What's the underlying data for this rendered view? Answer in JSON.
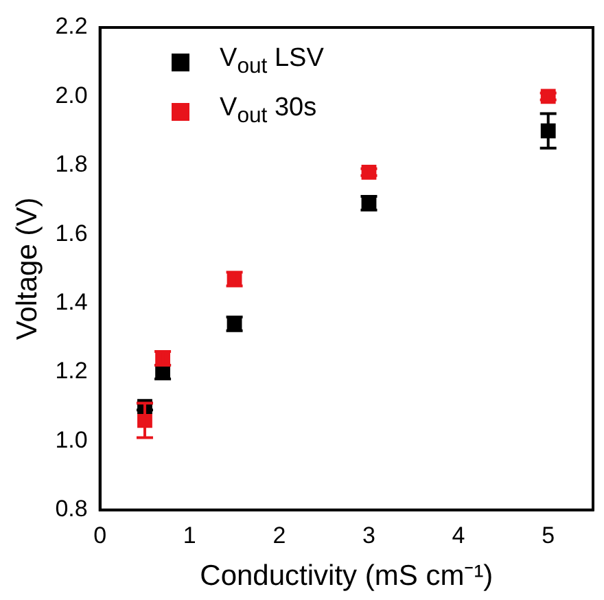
{
  "chart_data": {
    "type": "scatter",
    "xlabel": "Conductivity (mS cm⁻¹)",
    "ylabel": "Voltage (V)",
    "x": [
      0.5,
      0.7,
      1.5,
      3,
      5
    ],
    "series": [
      {
        "name": "V$_{out}$ LSV",
        "color": "#000000",
        "values": [
          1.1,
          1.2,
          1.34,
          1.69,
          1.9
        ],
        "errors": [
          0.01,
          0.02,
          0.02,
          0.02,
          0.05
        ]
      },
      {
        "name": "V$_{out}$ 30s",
        "color": "#e8141b",
        "values": [
          1.06,
          1.24,
          1.47,
          1.78,
          2.0
        ],
        "errors": [
          0.05,
          0.02,
          0.02,
          0.01,
          0.01
        ]
      }
    ],
    "xlim": [
      0,
      5.5
    ],
    "xticks": [
      0,
      1,
      2,
      3,
      4,
      5
    ],
    "ylim": [
      0.8,
      2.2
    ],
    "yticks": [
      0.8,
      {
        "value": 1,
        "label": "1.0"
      },
      1.2,
      1.4,
      1.6,
      1.8,
      {
        "value": 2,
        "label": "2.0"
      },
      2.2
    ],
    "grid": false,
    "legend": "top left",
    "marker": "square"
  }
}
